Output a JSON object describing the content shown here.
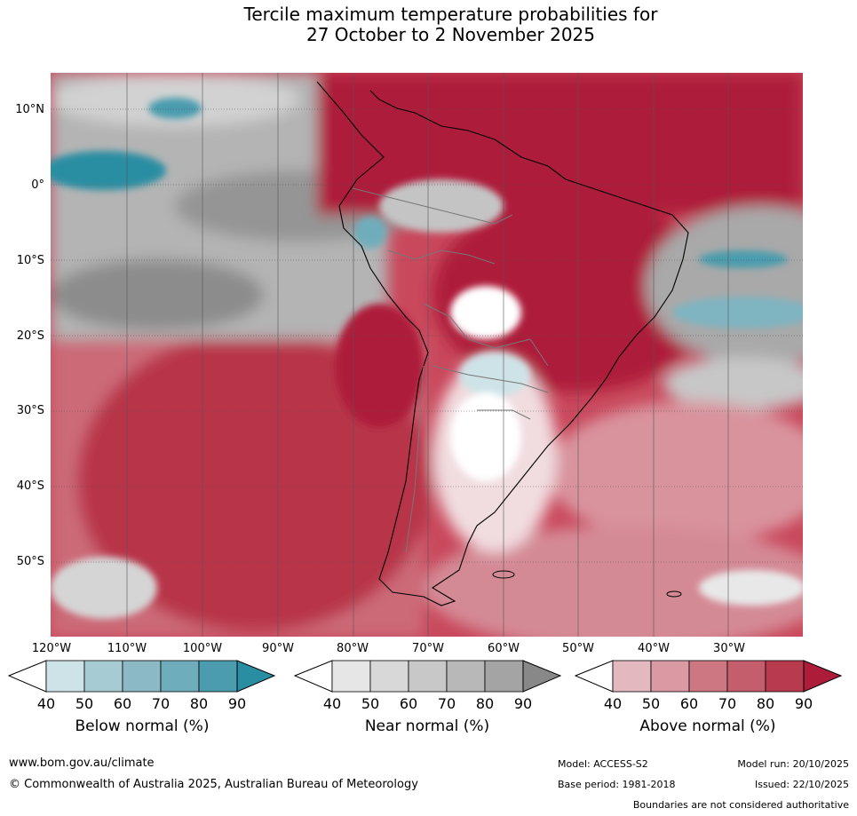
{
  "title": {
    "line1": "Tercile maximum temperature probabilities for",
    "line2": "27 October to 2 November 2025"
  },
  "map": {
    "lat_labels": [
      "10°N",
      "0°",
      "10°S",
      "20°S",
      "30°S",
      "40°S",
      "50°S"
    ],
    "lon_labels": [
      "120°W",
      "110°W",
      "100°W",
      "90°W",
      "80°W",
      "70°W",
      "60°W",
      "50°W",
      "40°W",
      "30°W"
    ]
  },
  "colorbars": [
    {
      "name": "below",
      "label": "Below normal (%)",
      "ticks": [
        "40",
        "50",
        "60",
        "70",
        "80",
        "90"
      ],
      "colors": [
        "#cde3e8",
        "#a7cbd3",
        "#8bbac4",
        "#6fadbc",
        "#4a9cae",
        "#2a8ea3"
      ]
    },
    {
      "name": "near",
      "label": "Near normal (%)",
      "ticks": [
        "40",
        "50",
        "60",
        "70",
        "80",
        "90"
      ],
      "colors": [
        "#e6e6e6",
        "#d8d8d8",
        "#c8c8c8",
        "#b8b8b8",
        "#a4a4a4",
        "#888888"
      ]
    },
    {
      "name": "above",
      "label": "Above normal (%)",
      "ticks": [
        "40",
        "50",
        "60",
        "70",
        "80",
        "90"
      ],
      "colors": [
        "#e3b8bf",
        "#d99aa3",
        "#cd7783",
        "#c45d6c",
        "#b83a4e",
        "#ad1d3a"
      ]
    }
  ],
  "footer": {
    "url": "www.bom.gov.au/climate",
    "copyright": "© Commonwealth of Australia 2025, Australian Bureau of Meteorology",
    "model": "Model: ACCESS-S2",
    "base_period": "Base period: 1981-2018",
    "model_run": "Model run: 20/10/2025",
    "issued": "Issued: 22/10/2025",
    "disclaimer": "Boundaries are not considered authoritative"
  }
}
